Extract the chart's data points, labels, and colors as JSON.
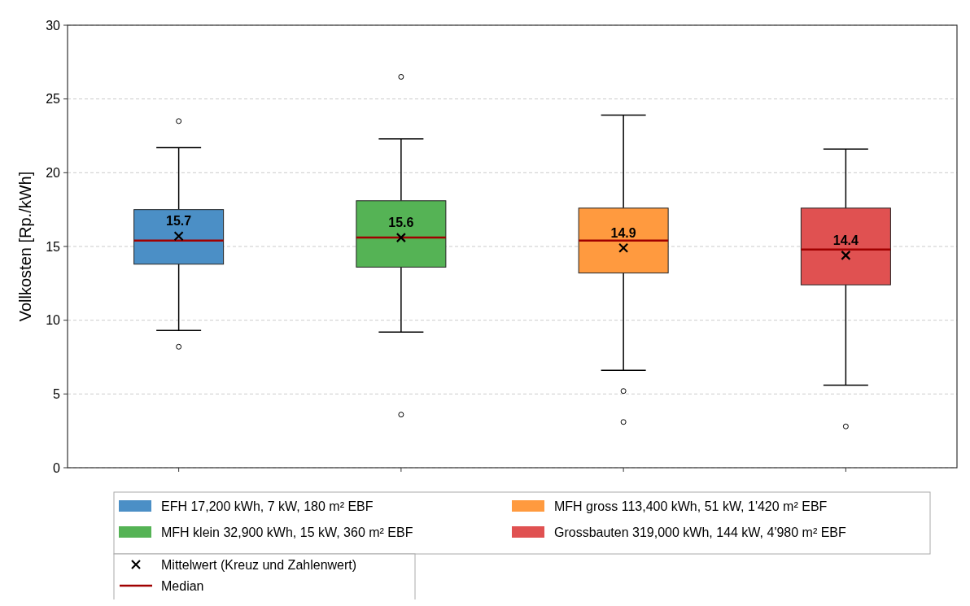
{
  "chart_data": {
    "type": "box",
    "ylabel": "Vollkosten [Rp./kWh]",
    "categories": [
      null,
      null,
      null,
      null
    ],
    "ylim": [
      0,
      30
    ],
    "yticks": [
      0,
      5,
      10,
      15,
      20,
      25,
      30
    ],
    "grid": "y",
    "legend": "bottom",
    "series": [
      {
        "name": "EFH 17,200 kWh, 7 kW, 180 m² EBF",
        "color": "#4b8fc6",
        "boxes": [
          {
            "low": 9.3,
            "q1": 13.8,
            "median": 15.4,
            "q3": 17.5,
            "high": 21.7,
            "mean": 15.7,
            "outliers": [
              23.5,
              8.2
            ]
          },
          null,
          null,
          null
        ],
        "value_labels": [
          "15.7",
          null,
          null,
          null
        ]
      },
      {
        "name": "MFH klein 32,900 kWh, 15 kW, 360 m² EBF",
        "color": "#55b355",
        "boxes": [
          null,
          {
            "low": 9.2,
            "q1": 13.6,
            "median": 15.6,
            "q3": 18.1,
            "high": 22.3,
            "mean": 15.6,
            "outliers": [
              26.5,
              3.6
            ]
          },
          null,
          null
        ],
        "value_labels": [
          null,
          "15.6",
          null,
          null
        ]
      },
      {
        "name": "MFH gross 113,400 kWh, 51 kW, 1'420 m² EBF",
        "color": "#ff9a3f",
        "boxes": [
          null,
          null,
          {
            "low": 6.6,
            "q1": 13.2,
            "median": 15.4,
            "q3": 17.6,
            "high": 23.9,
            "mean": 14.9,
            "outliers": [
              5.2,
              3.1
            ]
          },
          null
        ],
        "value_labels": [
          null,
          null,
          "14.9",
          null
        ]
      },
      {
        "name": "Grossbauten 319,000 kWh, 144 kW, 4'980 m² EBF",
        "color": "#e05151",
        "boxes": [
          null,
          null,
          null,
          {
            "low": 5.6,
            "q1": 12.4,
            "median": 14.8,
            "q3": 17.6,
            "high": 21.6,
            "mean": 14.4,
            "outliers": [
              2.8
            ]
          }
        ],
        "value_labels": [
          null,
          null,
          null,
          "14.4"
        ]
      }
    ],
    "annotations": [
      "Mittelwert (Kreuz und Zahlenwert)",
      "Median"
    ]
  }
}
